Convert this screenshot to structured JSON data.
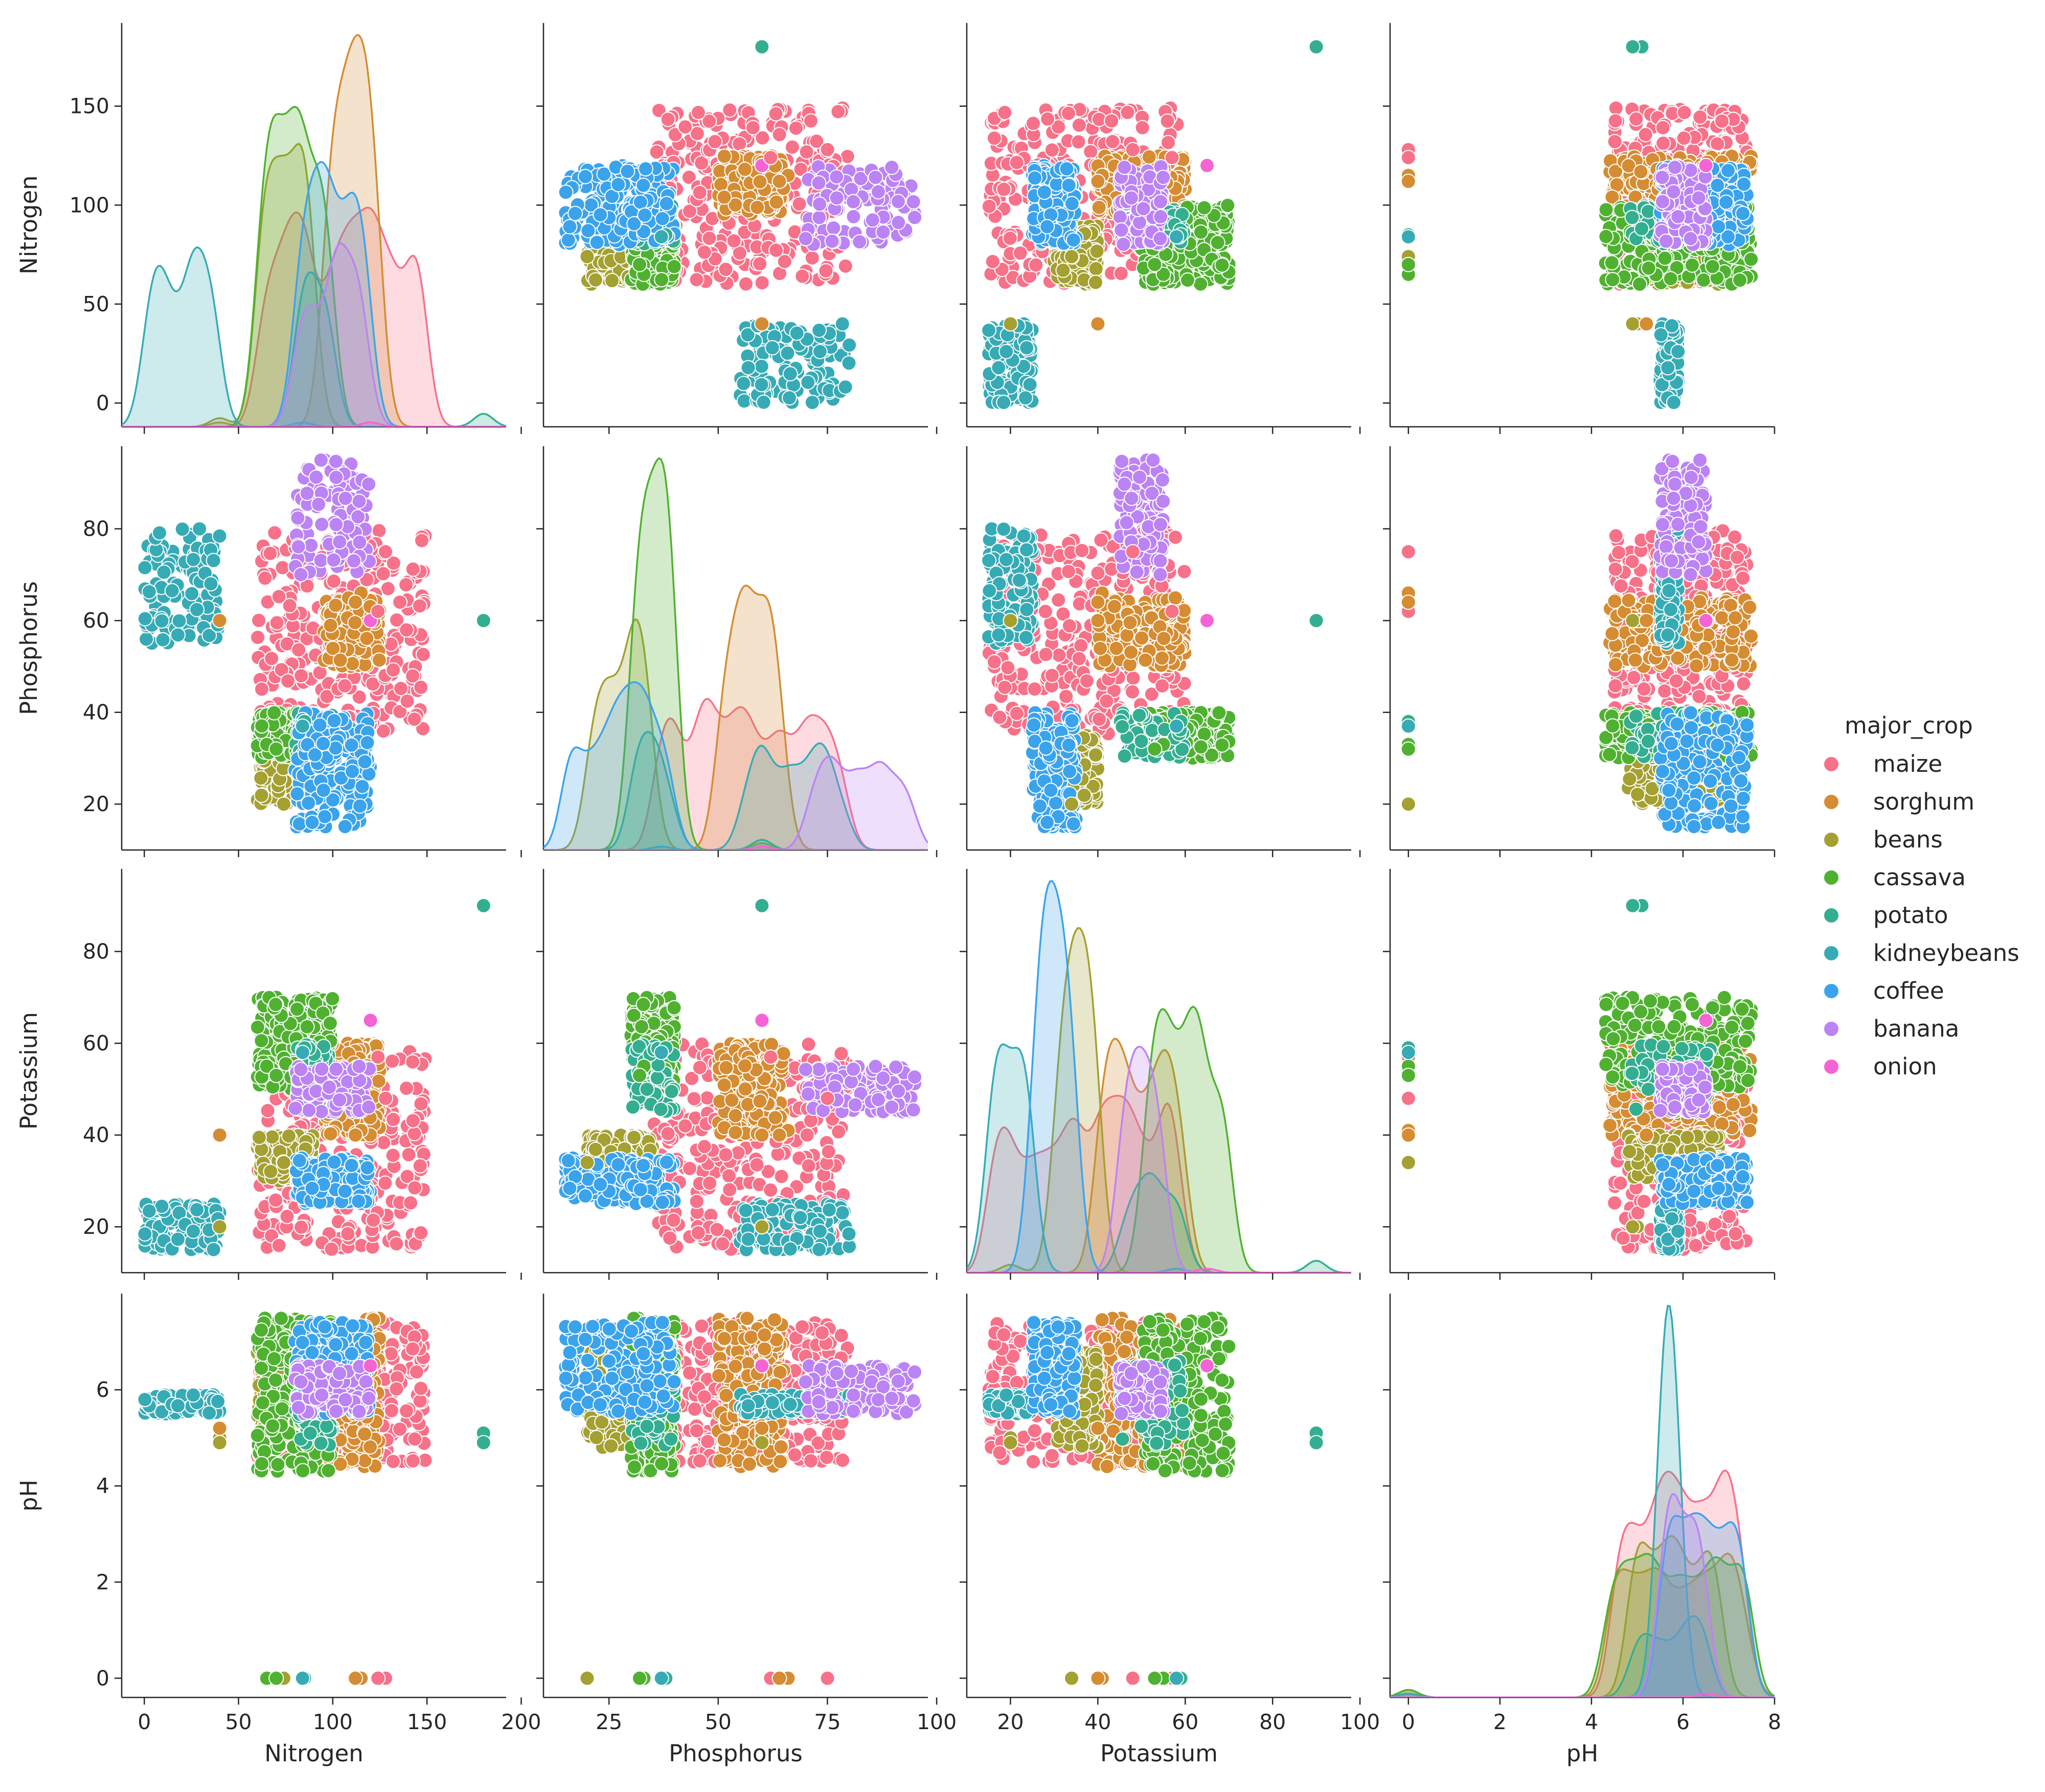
{
  "chart_data": {
    "type": "scatter",
    "title": "",
    "variables": [
      "Nitrogen",
      "Phosphorus",
      "Potassium",
      "pH"
    ],
    "hue": "major_crop",
    "legend": {
      "title": "major_crop",
      "placement": "right",
      "entries": [
        "maize",
        "sorghum",
        "beans",
        "cassava",
        "potato",
        "kidneybeans",
        "coffee",
        "banana",
        "onion"
      ]
    },
    "colors": {
      "maize": "#f77189",
      "sorghum": "#d58c32",
      "beans": "#a4a031",
      "cassava": "#50b131",
      "potato": "#34ae91",
      "kidneybeans": "#37abb5",
      "coffee": "#3ba3ec",
      "banana": "#bb83f4",
      "onion": "#f564d4"
    },
    "axes": {
      "Nitrogen": {
        "lim": [
          -12,
          192
        ],
        "ticks": [
          0,
          50,
          100,
          150,
          200
        ],
        "tick_labels": [
          "0",
          "50",
          "100",
          "150",
          "200"
        ],
        "y_ticks": [
          0,
          50,
          100,
          150
        ],
        "y_tick_labels": [
          "0",
          "50",
          "100",
          "150"
        ]
      },
      "Phosphorus": {
        "lim": [
          10,
          98
        ],
        "ticks": [
          25,
          50,
          75,
          100
        ],
        "tick_labels": [
          "25",
          "50",
          "75",
          "100"
        ],
        "y_ticks": [
          20,
          40,
          60,
          80
        ],
        "y_tick_labels": [
          "20",
          "40",
          "60",
          "80"
        ]
      },
      "Potassium": {
        "lim": [
          10,
          98
        ],
        "ticks": [
          20,
          40,
          60,
          80,
          100
        ],
        "tick_labels": [
          "20",
          "40",
          "60",
          "80",
          "100"
        ],
        "y_ticks": [
          20,
          40,
          60,
          80
        ],
        "y_tick_labels": [
          "20",
          "40",
          "60",
          "80"
        ]
      },
      "pH": {
        "lim": [
          -0.4,
          8.0
        ],
        "ticks": [
          0,
          2,
          4,
          6,
          8
        ],
        "tick_labels": [
          "0",
          "2",
          "4",
          "6",
          "8"
        ],
        "y_ticks": [
          0,
          2,
          4,
          6
        ],
        "y_tick_labels": [
          "0",
          "2",
          "4",
          "6"
        ]
      }
    },
    "clusters": [
      {
        "crop": "maize",
        "N": [
          60,
          150
        ],
        "P": [
          35,
          80
        ],
        "K": [
          15,
          60
        ],
        "pH": [
          4.5,
          7.4
        ],
        "n": 300
      },
      {
        "crop": "sorghum",
        "N": [
          95,
          125
        ],
        "P": [
          50,
          65
        ],
        "K": [
          40,
          60
        ],
        "pH": [
          4.4,
          7.5
        ],
        "n": 200
      },
      {
        "crop": "beans",
        "N": [
          60,
          90
        ],
        "P": [
          20,
          35
        ],
        "K": [
          30,
          40
        ],
        "pH": [
          4.8,
          6.8
        ],
        "n": 160
      },
      {
        "crop": "cassava",
        "N": [
          60,
          100
        ],
        "P": [
          30,
          40
        ],
        "K": [
          50,
          70
        ],
        "pH": [
          4.3,
          7.5
        ],
        "n": 220
      },
      {
        "crop": "potato",
        "N": [
          80,
          100
        ],
        "P": [
          30,
          40
        ],
        "K": [
          45,
          60
        ],
        "pH": [
          4.8,
          6.6
        ],
        "n": 60
      },
      {
        "crop": "kidneybeans",
        "N": [
          0,
          40
        ],
        "P": [
          55,
          80
        ],
        "K": [
          15,
          25
        ],
        "pH": [
          5.5,
          5.9
        ],
        "n": 120
      },
      {
        "crop": "coffee",
        "N": [
          80,
          120
        ],
        "P": [
          15,
          40
        ],
        "K": [
          25,
          35
        ],
        "pH": [
          5.5,
          7.4
        ],
        "n": 180
      },
      {
        "crop": "banana",
        "N": [
          80,
          120
        ],
        "P": [
          70,
          95
        ],
        "K": [
          45,
          55
        ],
        "pH": [
          5.5,
          6.5
        ],
        "n": 110
      }
    ],
    "outliers": [
      {
        "crop": "potato",
        "N": 180,
        "P": 60,
        "K": 90,
        "pH": 5.0
      },
      {
        "crop": "potato",
        "N": 180,
        "P": 60,
        "K": 90,
        "pH": 5.1
      },
      {
        "crop": "potato",
        "N": 180,
        "P": 60,
        "K": 90,
        "pH": 4.9
      },
      {
        "crop": "onion",
        "N": 120,
        "P": 60,
        "K": 65,
        "pH": 6.5
      },
      {
        "crop": "beans",
        "N": 40,
        "P": 60,
        "K": 20,
        "pH": 5.0
      },
      {
        "crop": "beans",
        "N": 40,
        "P": 60,
        "K": 20,
        "pH": 4.9
      },
      {
        "crop": "sorghum",
        "N": 40,
        "P": 60,
        "K": 40,
        "pH": 5.2
      },
      {
        "crop": "maize",
        "N": 128,
        "P": 75,
        "K": 48,
        "pH": 0
      },
      {
        "crop": "maize",
        "N": 124,
        "P": 62,
        "K": 57,
        "pH": 0
      },
      {
        "crop": "sorghum",
        "N": 115,
        "P": 66,
        "K": 41,
        "pH": 0
      },
      {
        "crop": "sorghum",
        "N": 112,
        "P": 64,
        "K": 40,
        "pH": 0
      },
      {
        "crop": "beans",
        "N": 74,
        "P": 20,
        "K": 34,
        "pH": 0
      },
      {
        "crop": "cassava",
        "N": 65,
        "P": 33,
        "K": 55,
        "pH": 0
      },
      {
        "crop": "cassava",
        "N": 70,
        "P": 32,
        "K": 53,
        "pH": 0
      },
      {
        "crop": "potato",
        "N": 85,
        "P": 38,
        "K": 59,
        "pH": 0
      },
      {
        "crop": "kidneybeans",
        "N": 84,
        "P": 37,
        "K": 58,
        "pH": 0
      }
    ]
  }
}
